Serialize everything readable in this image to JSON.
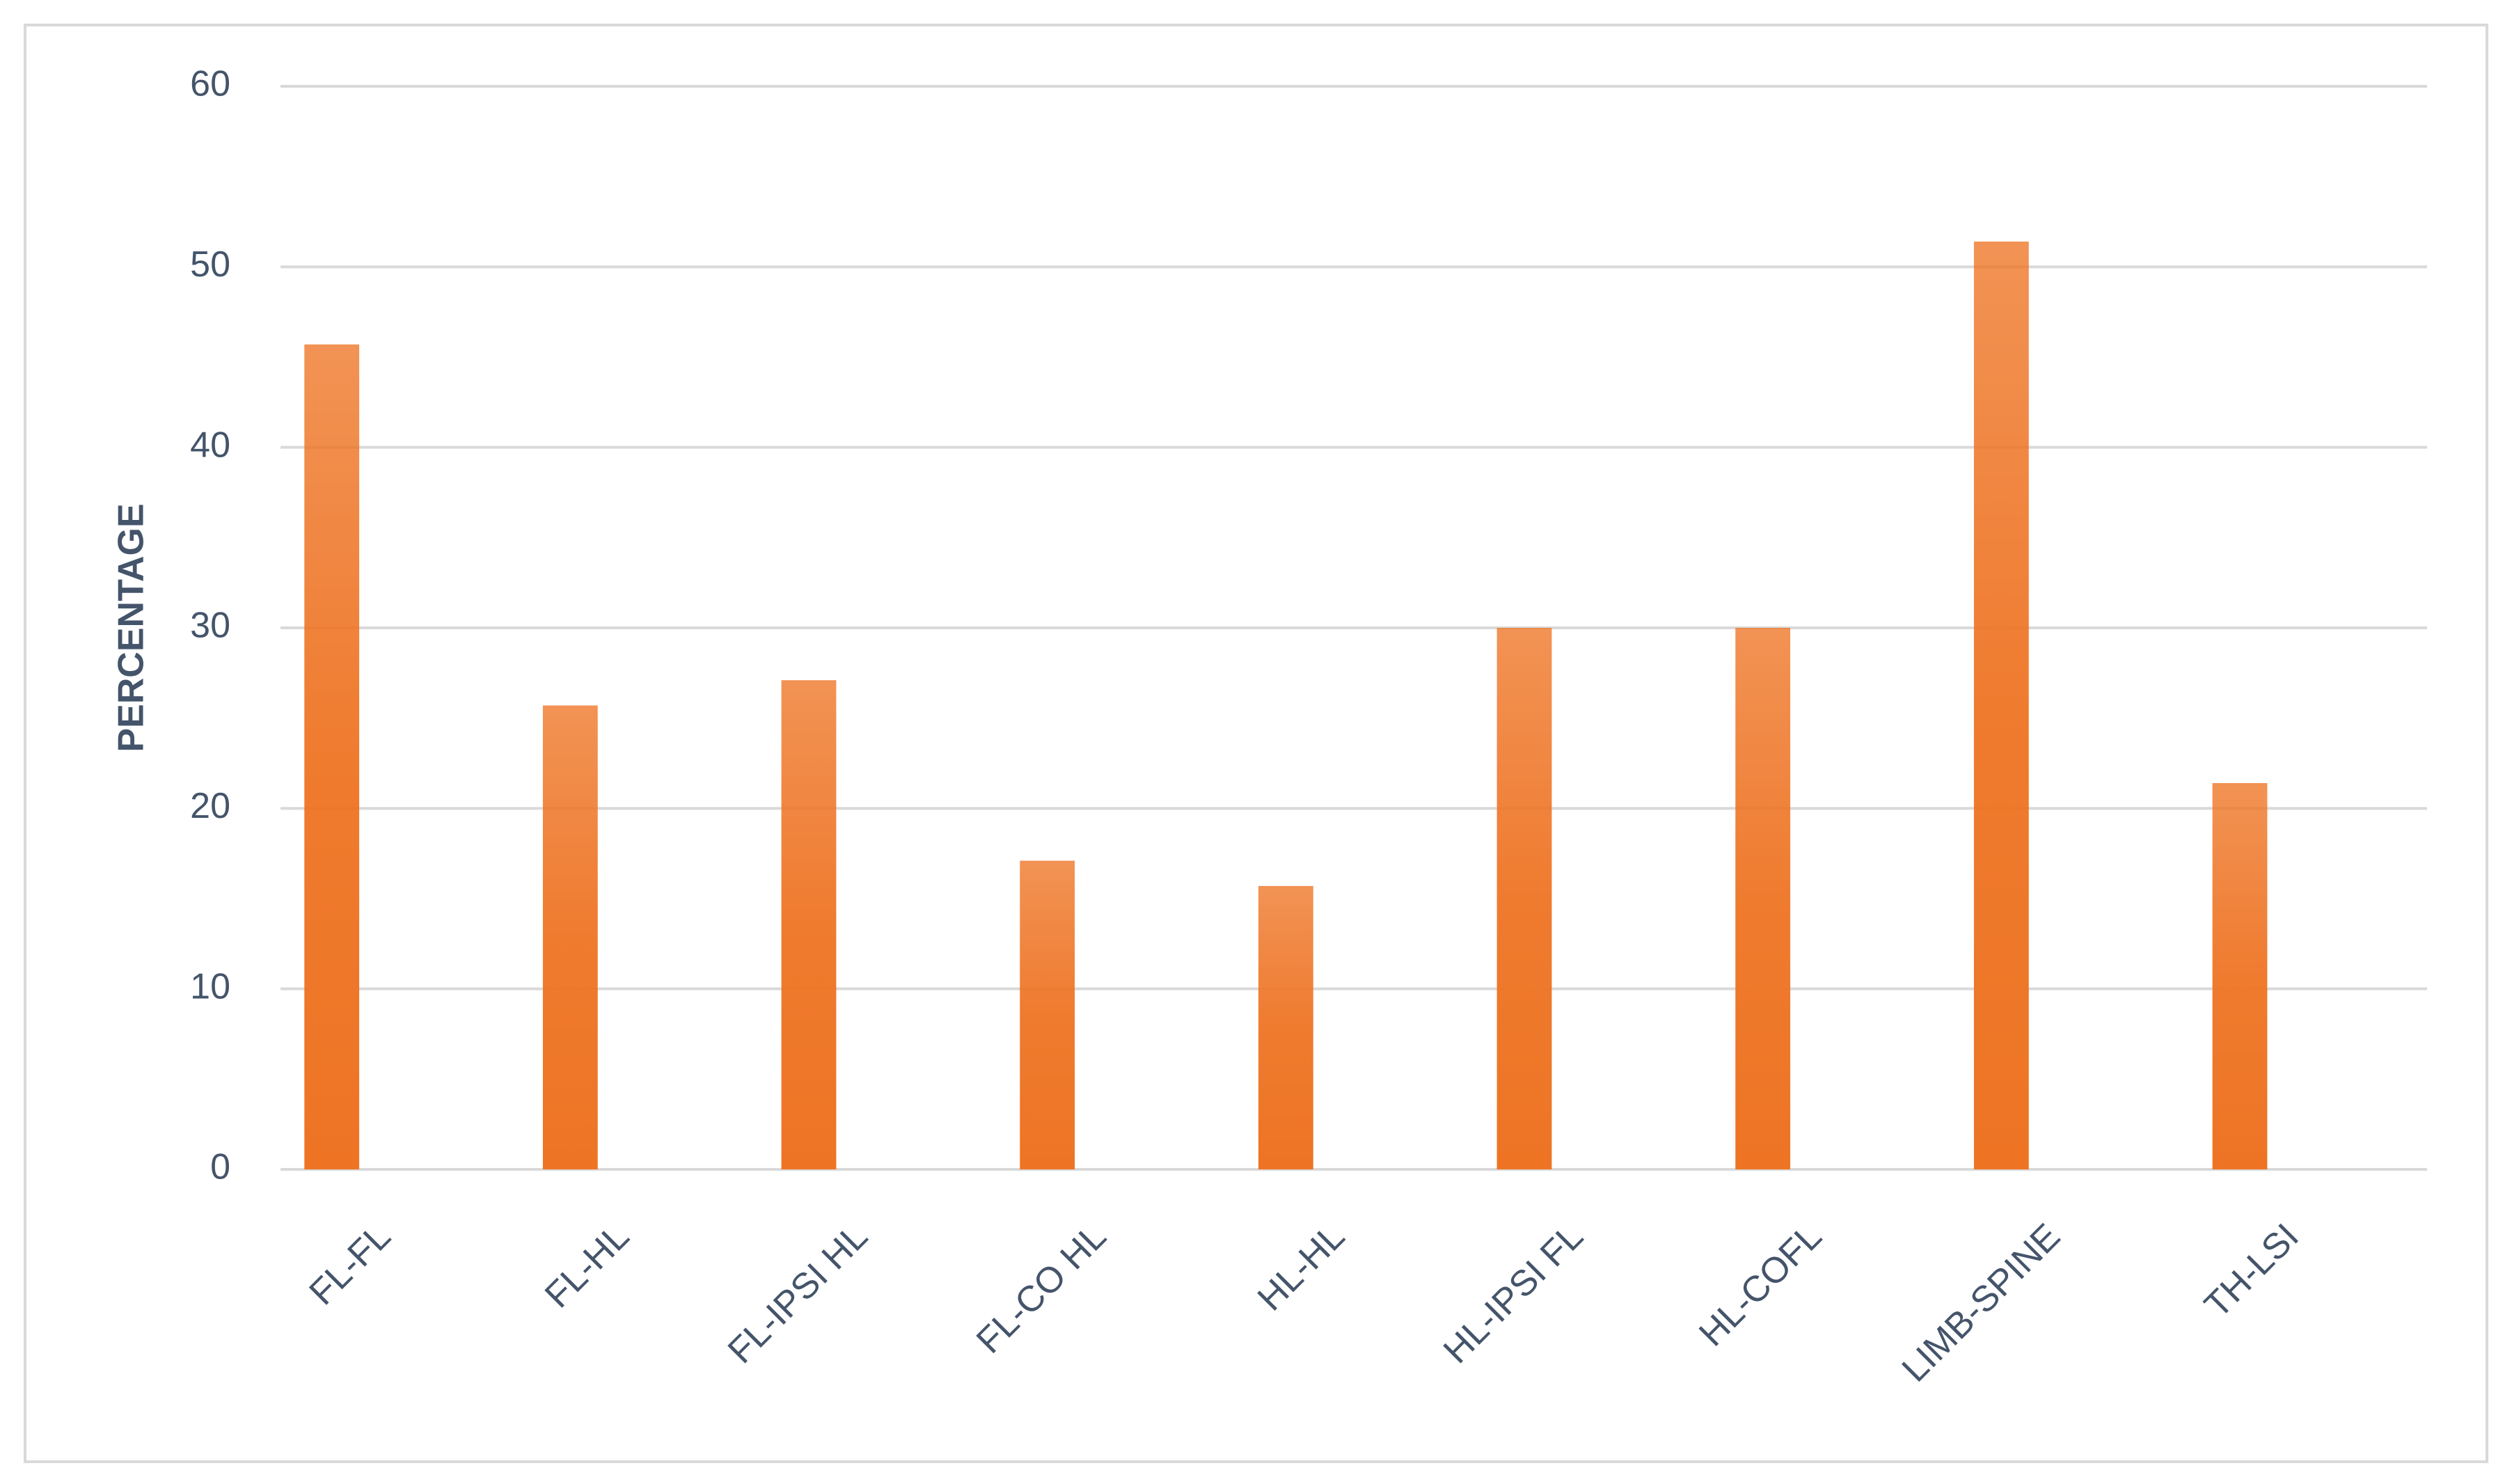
{
  "chart_data": {
    "type": "bar",
    "y_label": "PERCENTAGE",
    "categories": [
      "FL-FL",
      "FL-HL",
      "FL-IPSI HL",
      "FL-CO HL",
      "HL-HL",
      "HL-IPSI FL",
      "HL-COFL",
      "LIMB-SPINE",
      "TH-LSI"
    ],
    "values": [
      45.7,
      25.7,
      27.1,
      17.1,
      15.7,
      30,
      30,
      51.4,
      21.4
    ],
    "color": "#ee7424",
    "ylim": [
      0,
      60
    ],
    "yticks": [
      0,
      10,
      20,
      30,
      40,
      50,
      60
    ],
    "grid": true
  }
}
